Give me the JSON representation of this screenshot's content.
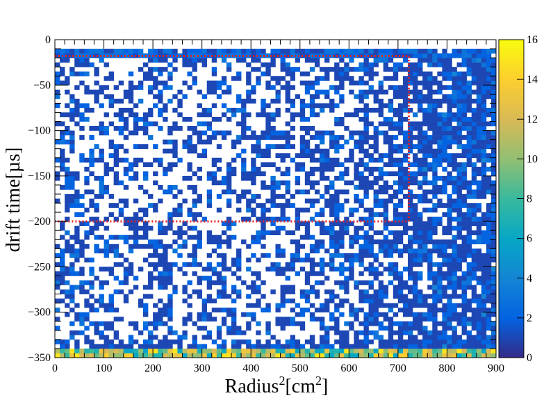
{
  "chart_data": {
    "type": "heatmap",
    "title": "",
    "xlabel": "Radius",
    "xlabel_sup1": "2",
    "xlabel_mid": "[cm",
    "xlabel_sup2": "2",
    "xlabel_end": "]",
    "ylabel": "drift time[µs]",
    "xlim": [
      0,
      900
    ],
    "ylim": [
      -350,
      0
    ],
    "x_ticks": [
      "0",
      "100",
      "200",
      "300",
      "400",
      "500",
      "600",
      "700",
      "800",
      "900"
    ],
    "y_ticks": [
      "0",
      "−50",
      "−100",
      "−150",
      "−200",
      "−250",
      "−300",
      "−350"
    ],
    "zlim": [
      0,
      16
    ],
    "colorbar_ticks": [
      "0",
      "2",
      "4",
      "6",
      "8",
      "10",
      "12",
      "14",
      "16"
    ],
    "palette": [
      "#352a87",
      "#0363e1",
      "#1485d4",
      "#06a7c6",
      "#38b99e",
      "#92bf73",
      "#d9ba56",
      "#fcce2e",
      "#f9fb0e"
    ],
    "empty_color": "#ffffff",
    "bins": {
      "nx": 90,
      "ny": 70,
      "dx": 10,
      "dy": 5,
      "x_from": 0,
      "y_from": -350
    },
    "density_profile": {
      "by_radius2": [
        [
          0,
          0.38
        ],
        [
          300,
          0.4
        ],
        [
          500,
          0.45
        ],
        [
          600,
          0.56
        ],
        [
          700,
          0.68
        ],
        [
          800,
          0.8
        ],
        [
          900,
          0.88
        ]
      ],
      "drift_time_dense_band": [
        -12,
        -18
      ],
      "bottom_band": [
        -340,
        -350
      ],
      "bottom_band_counts_range": [
        6,
        16
      ]
    },
    "fiducial_cut": {
      "line_color": "#e32227",
      "line_style": "dotted",
      "r2_max": 722,
      "t_min": -200,
      "t_max": -18
    },
    "grid": false,
    "legend": "none"
  }
}
